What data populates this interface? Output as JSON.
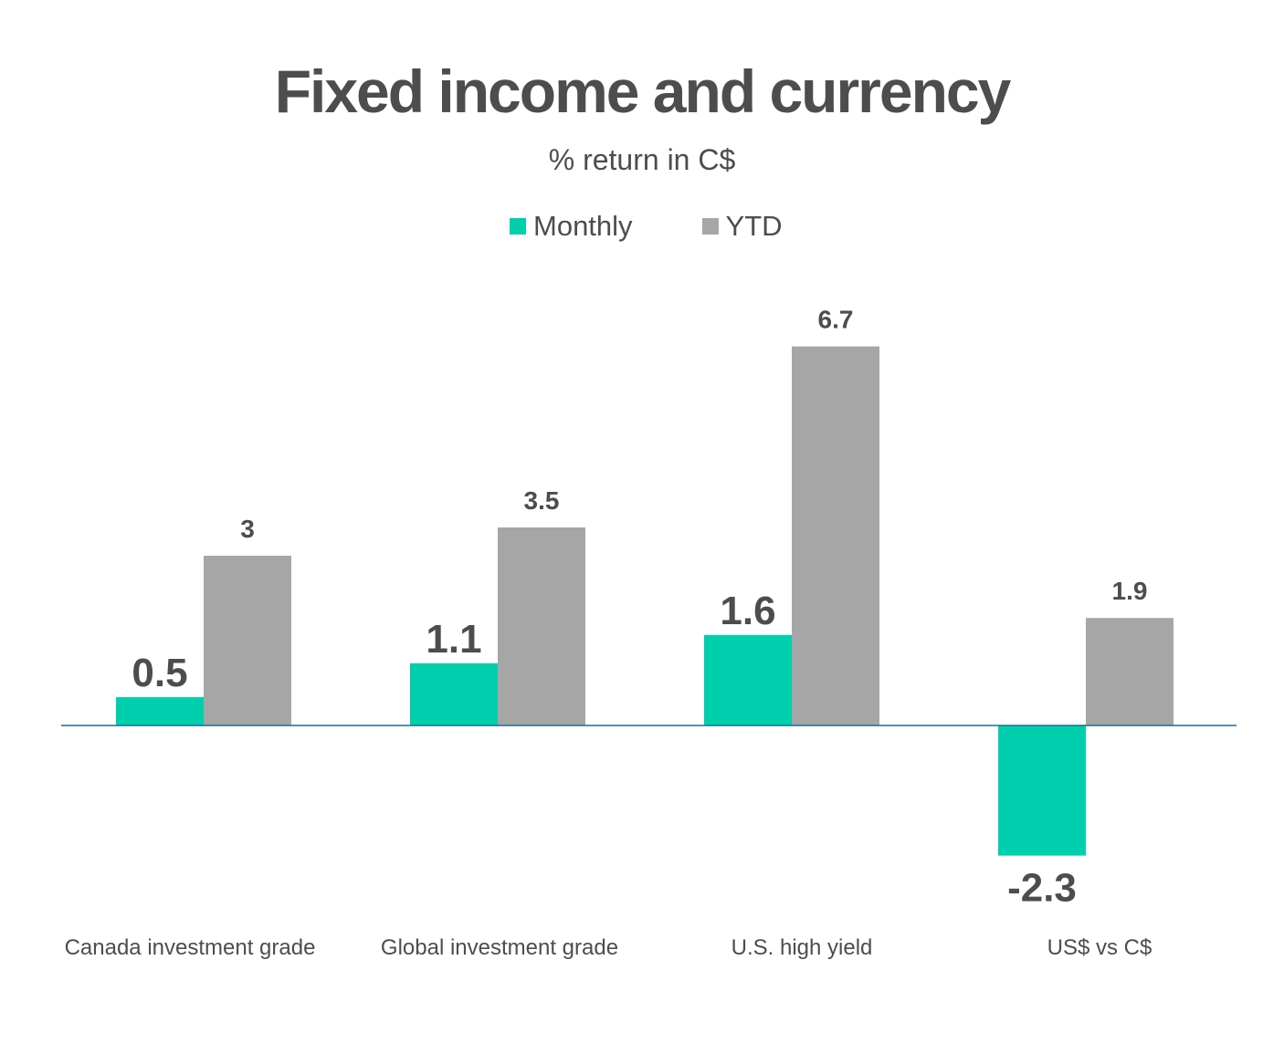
{
  "chart_data": {
    "type": "bar",
    "title": "Fixed income and currency",
    "subtitle": "% return in C$",
    "categories": [
      "Canada investment grade",
      "Global investment grade",
      "U.S. high yield",
      "US$ vs C$"
    ],
    "series": [
      {
        "name": "Monthly",
        "values": [
          0.5,
          1.1,
          1.6,
          -2.3
        ],
        "color": "#00cfae",
        "labels": [
          "0.5",
          "1.1",
          "1.6",
          "-2.3"
        ]
      },
      {
        "name": "YTD",
        "values": [
          3,
          3.5,
          6.7,
          1.9
        ],
        "color": "#a6a6a6",
        "labels": [
          "3",
          "3.5",
          "6.7",
          "1.9"
        ]
      }
    ],
    "xlabel": "",
    "ylabel": "",
    "legend_position": "top-center",
    "grid": false,
    "axis_color": "#1a6f8a"
  }
}
